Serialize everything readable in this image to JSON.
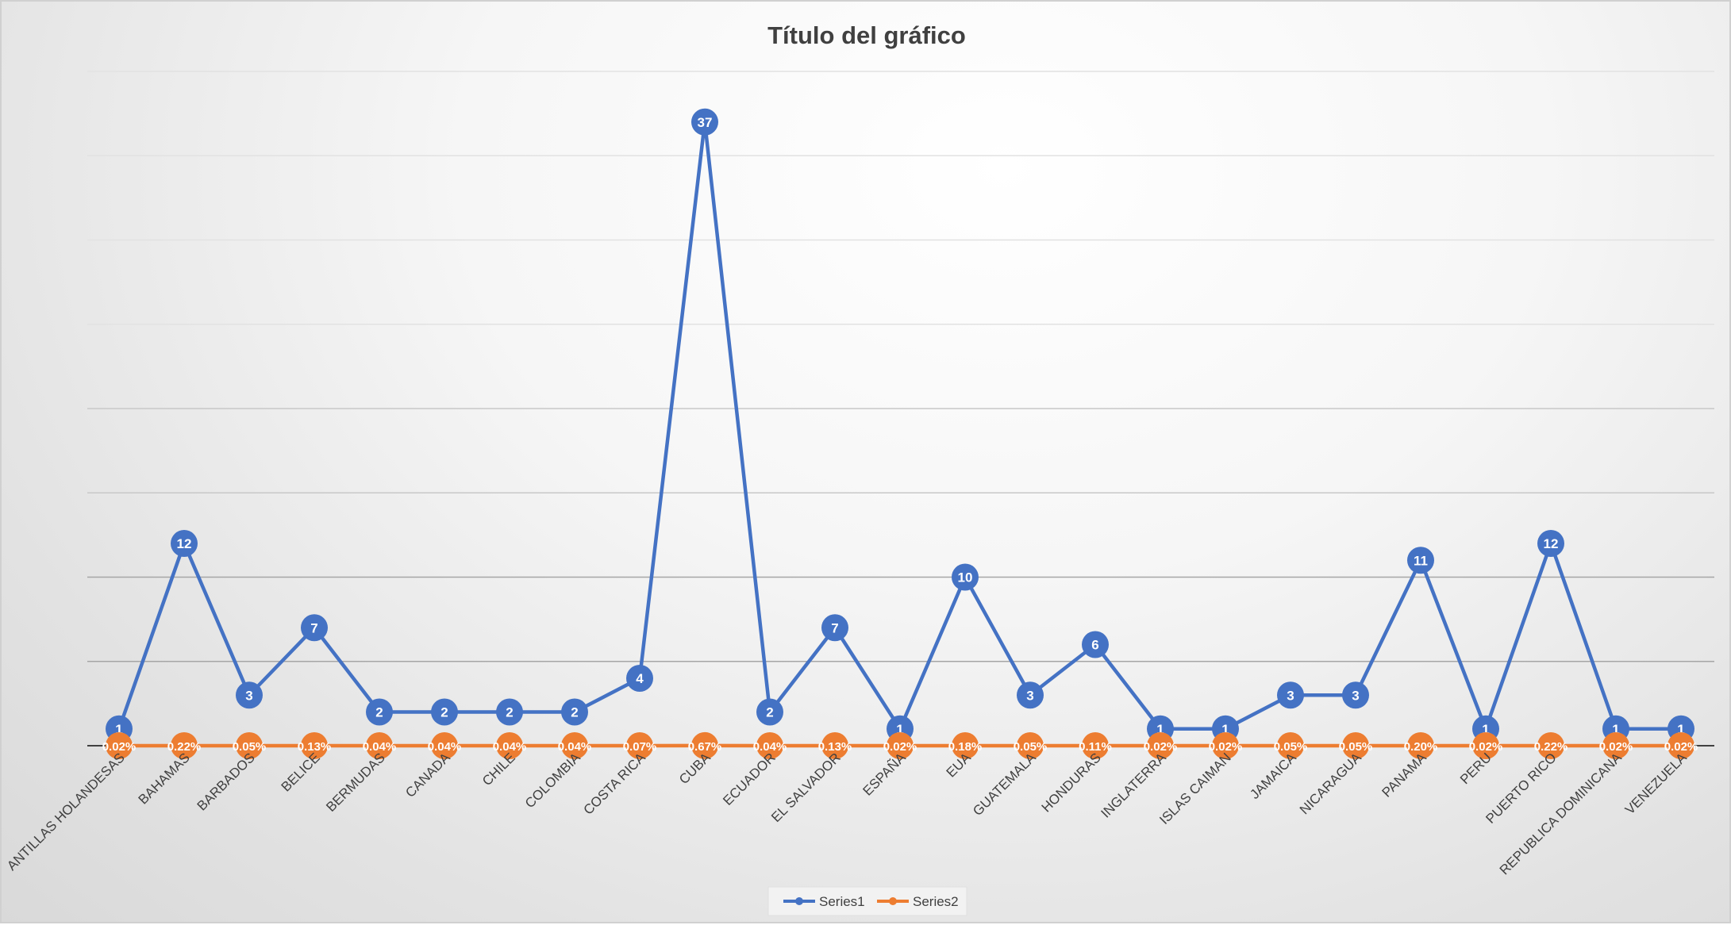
{
  "chart_data": {
    "type": "line",
    "title": "Título del gráfico",
    "categories": [
      "ANTILLAS HOLANDESAS",
      "BAHAMAS",
      "BARBADOS",
      "BELICE",
      "BERMUDAS",
      "CANADA",
      "CHILE",
      "COLOMBIA",
      "COSTA RICA",
      "CUBA",
      "ECUADOR",
      "EL SALVADOR",
      "ESPAÑA",
      "EUA",
      "GUATEMALA",
      "HONDURAS",
      "INGLATERRA",
      "ISLAS CAIMAN",
      "JAMAICA",
      "NICARAGUA",
      "PANAMA",
      "PERU",
      "PUERTO RICO",
      "REPUBLICA DOMINICANA",
      "VENEZUELA"
    ],
    "series": [
      {
        "name": "Series1",
        "color": "#4472c4",
        "values": [
          1,
          12,
          3,
          7,
          2,
          2,
          2,
          2,
          4,
          37,
          2,
          7,
          1,
          10,
          3,
          6,
          1,
          1,
          3,
          3,
          11,
          1,
          12,
          1,
          1
        ],
        "labels": [
          "1",
          "12",
          "3",
          "7",
          "2",
          "2",
          "2",
          "2",
          "4",
          "37",
          "2",
          "7",
          "1",
          "10",
          "3",
          "6",
          "1",
          "1",
          "3",
          "3",
          "11",
          "1",
          "12",
          "1",
          "1"
        ]
      },
      {
        "name": "Series2",
        "color": "#ed7d31",
        "values": [
          0.0002,
          0.0022,
          0.0005,
          0.0013,
          0.0004,
          0.0004,
          0.0004,
          0.0004,
          0.0007,
          0.0067,
          0.0004,
          0.0013,
          0.0002,
          0.0018,
          0.0005,
          0.0011,
          0.0002,
          0.0002,
          0.0005,
          0.0005,
          0.002,
          0.0002,
          0.0022,
          0.0002,
          0.0002
        ],
        "labels": [
          "0.02%",
          "0.22%",
          "0.05%",
          "0.13%",
          "0.04%",
          "0.04%",
          "0.04%",
          "0.04%",
          "0.07%",
          "0.67%",
          "0.04%",
          "0.13%",
          "0.02%",
          "0.18%",
          "0.05%",
          "0.11%",
          "0.02%",
          "0.02%",
          "0.05%",
          "0.05%",
          "0.20%",
          "0.02%",
          "0.22%",
          "0.02%",
          "0.02%"
        ]
      }
    ],
    "ylim": [
      0,
      40
    ],
    "y_gridline_step": 5,
    "grid": true,
    "legend": "bottom",
    "xlabel": "",
    "ylabel": ""
  }
}
